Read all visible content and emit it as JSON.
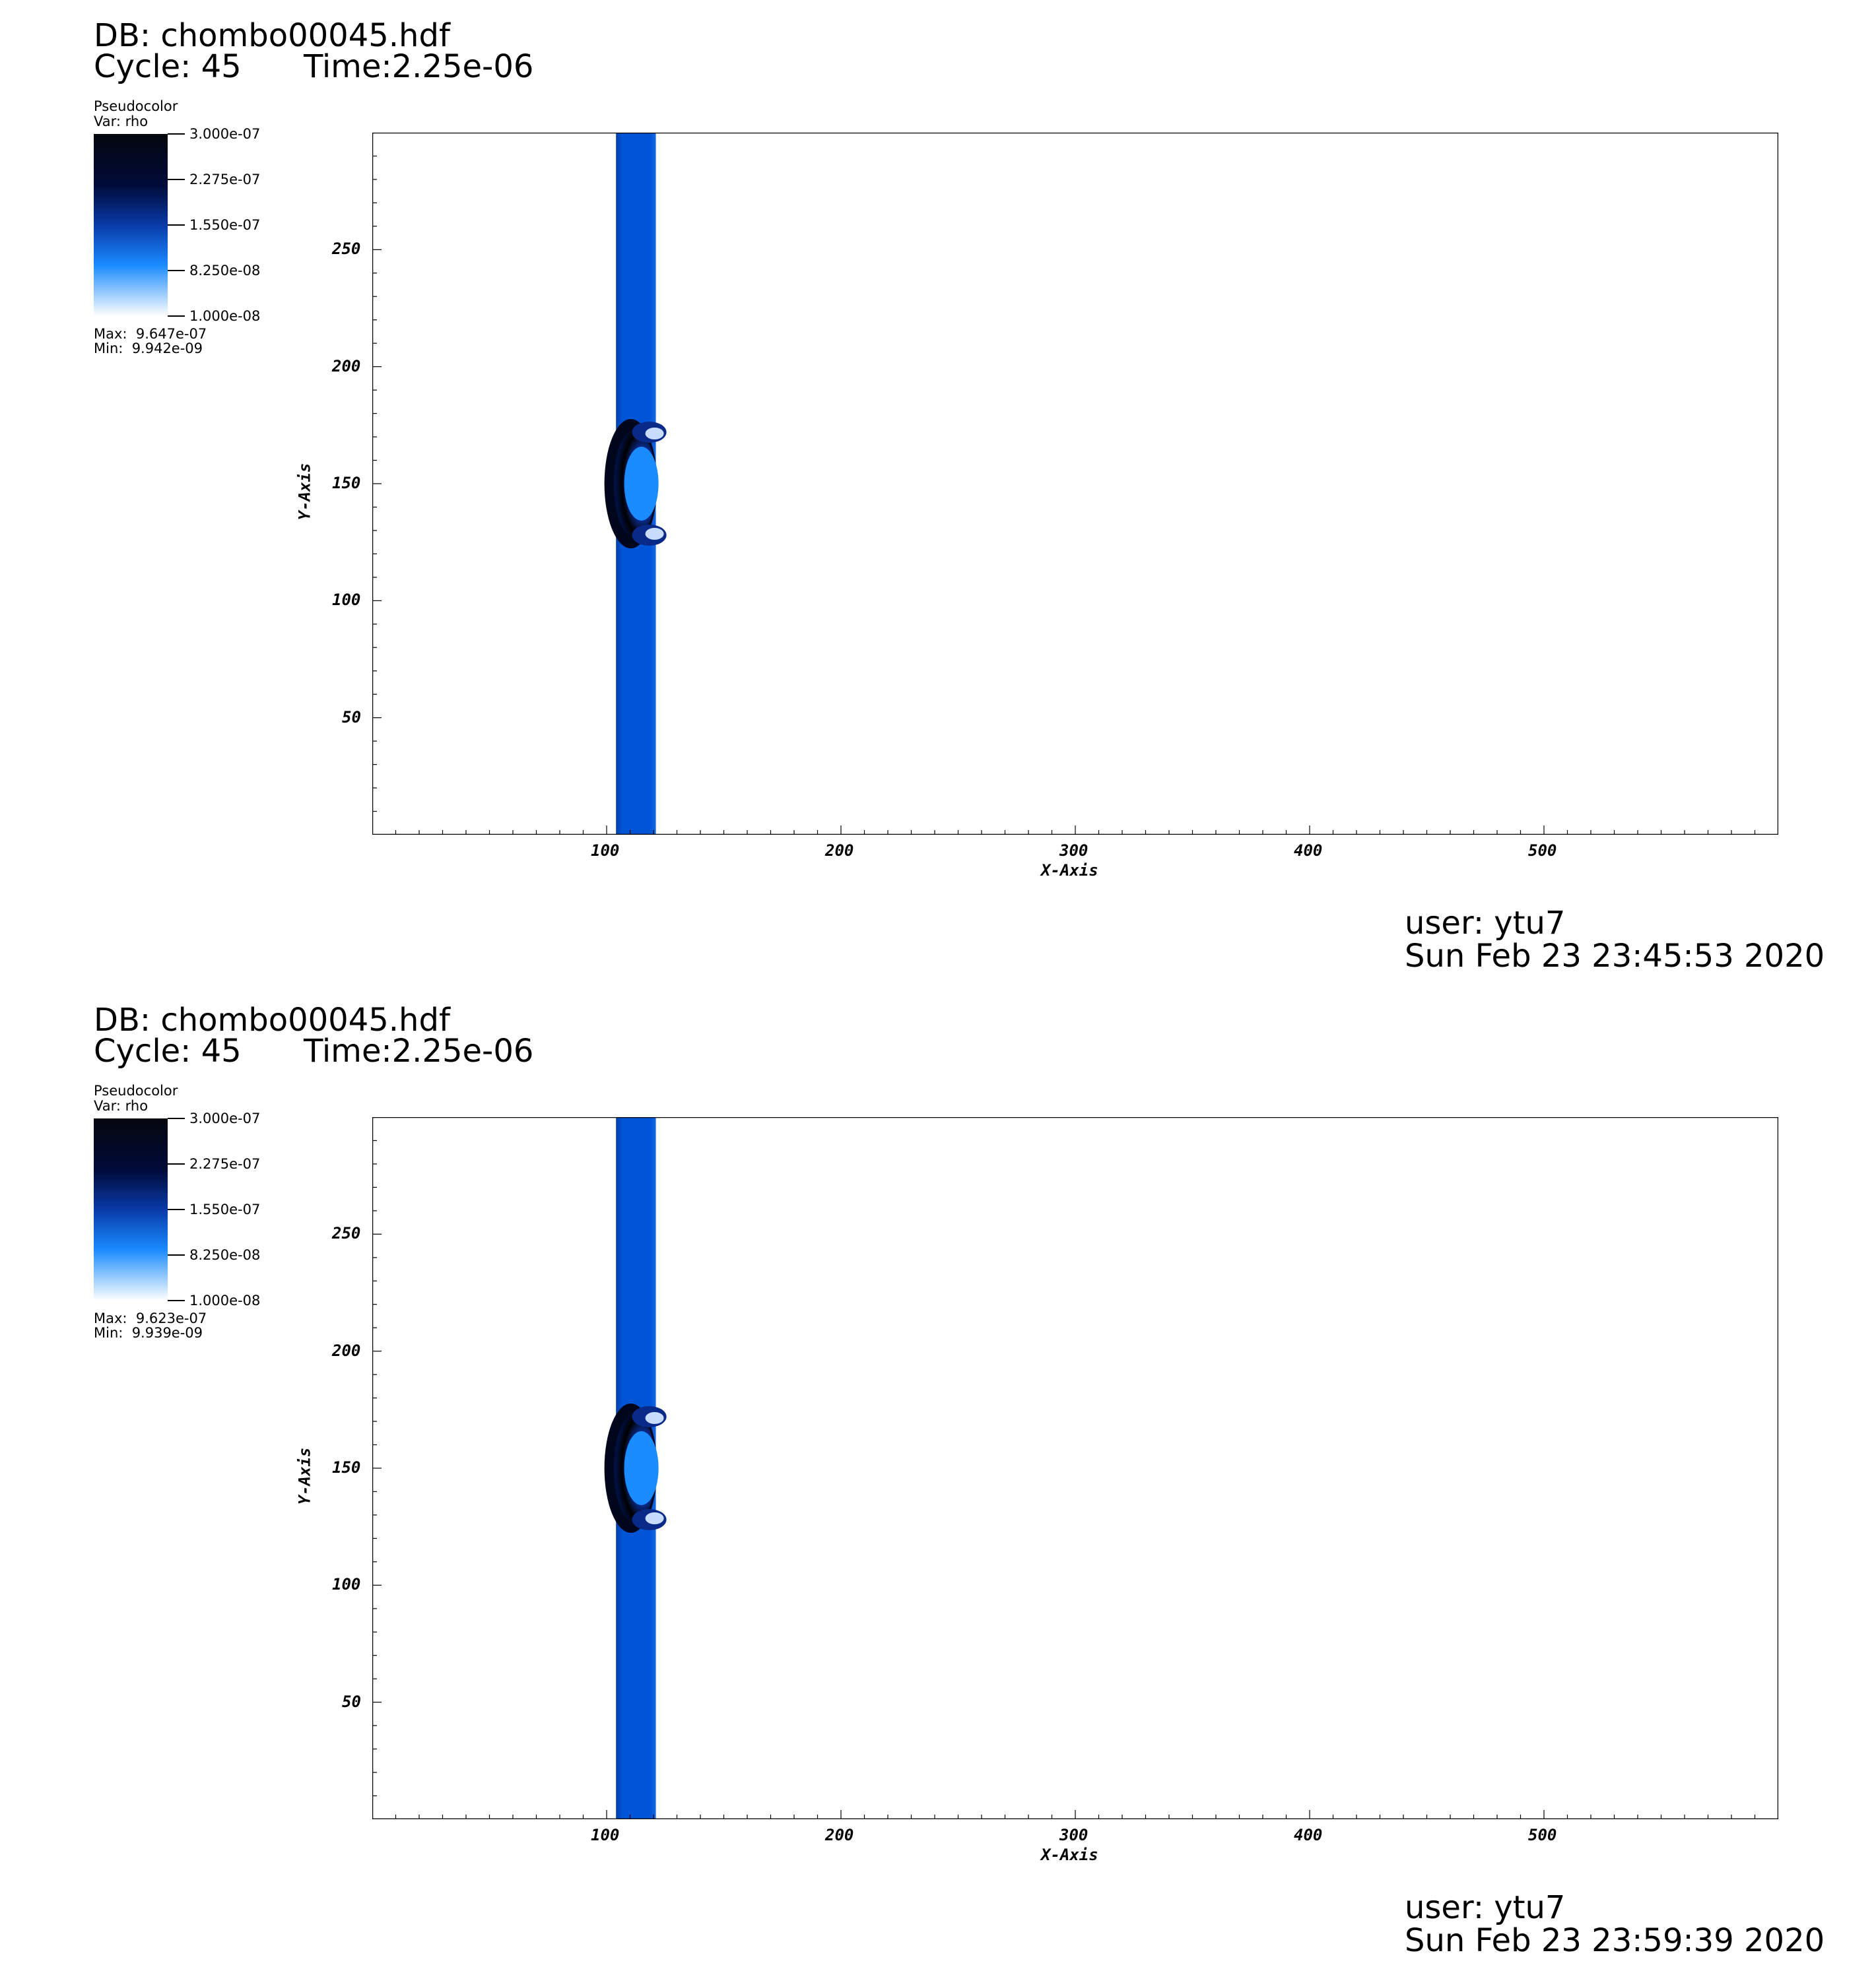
{
  "panels": [
    {
      "db_label": "DB: chombo00045.hdf",
      "cycle_label": "Cycle: 45",
      "time_label": "Time:2.25e-06",
      "legend_title": "Pseudocolor",
      "legend_var": "Var: rho",
      "legend_max": "Max:  9.647e-07",
      "legend_min": "Min:  9.942e-09",
      "user": "user: ytu7",
      "date": "Sun Feb 23 23:45:53 2020"
    },
    {
      "db_label": "DB: chombo00045.hdf",
      "cycle_label": "Cycle: 45",
      "time_label": "Time:2.25e-06",
      "legend_title": "Pseudocolor",
      "legend_var": "Var: rho",
      "legend_max": "Max:  9.623e-07",
      "legend_min": "Min:  9.939e-09",
      "user": "user: ytu7",
      "date": "Sun Feb 23 23:59:39 2020"
    }
  ],
  "chart_data": [
    {
      "type": "heatmap",
      "variable": "rho",
      "xlabel": "X-Axis",
      "ylabel": "Y-Axis",
      "xlim": [
        0,
        600
      ],
      "ylim": [
        0,
        300
      ],
      "x_ticks": [
        100,
        200,
        300,
        400,
        500
      ],
      "y_ticks": [
        50,
        100,
        150,
        200,
        250
      ],
      "colorbar_ticks": [
        "3.000e-07",
        "2.275e-07",
        "1.550e-07",
        "8.250e-08",
        "1.000e-08"
      ],
      "colorbar_range": [
        1e-08,
        3e-07
      ],
      "colors": {
        "band": "#0055d6",
        "band_dark": "#003fa8",
        "core": "#1a8cff",
        "shock": "#000000"
      },
      "band_x": [
        104,
        121
      ],
      "clump_center": [
        112,
        150
      ]
    },
    {
      "type": "heatmap",
      "variable": "rho",
      "xlabel": "X-Axis",
      "ylabel": "Y-Axis",
      "xlim": [
        0,
        600
      ],
      "ylim": [
        0,
        300
      ],
      "x_ticks": [
        100,
        200,
        300,
        400,
        500
      ],
      "y_ticks": [
        50,
        100,
        150,
        200,
        250
      ],
      "colorbar_ticks": [
        "3.000e-07",
        "2.275e-07",
        "1.550e-07",
        "8.250e-08",
        "1.000e-08"
      ],
      "colorbar_range": [
        1e-08,
        3e-07
      ],
      "colors": {
        "band": "#0055d6",
        "band_dark": "#003fa8",
        "core": "#1a8cff",
        "shock": "#000000"
      },
      "band_x": [
        104,
        121
      ],
      "clump_center": [
        112,
        150
      ]
    }
  ]
}
